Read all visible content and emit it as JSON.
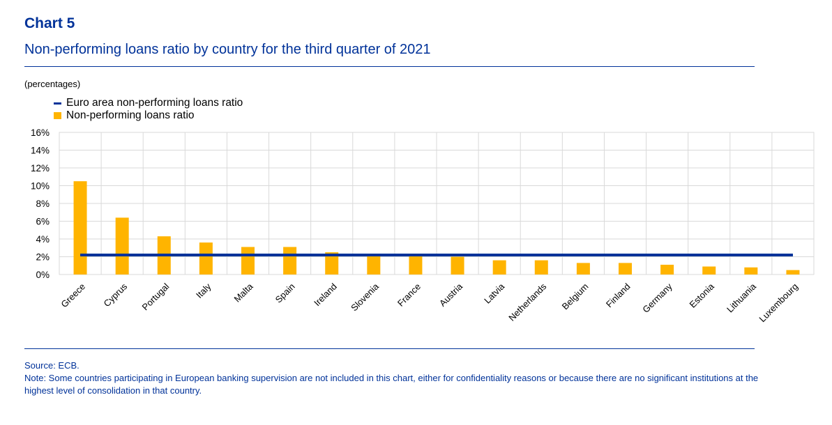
{
  "header": {
    "label": "Chart 5",
    "title": "Non-performing loans ratio by country for the third quarter of 2021",
    "units": "(percentages)"
  },
  "legend": {
    "items": [
      {
        "label": "Euro area non-performing loans ratio",
        "color": "#003299",
        "kind": "line"
      },
      {
        "label": "Non-performing loans ratio",
        "color": "#ffb400",
        "kind": "bar"
      }
    ]
  },
  "footer": {
    "source": "Source: ECB.",
    "note": "Note: Some countries participating in European banking supervision are not included in this chart, either for confidentiality reasons or because there are no significant institutions at the highest level of consolidation in that country."
  },
  "chart_data": {
    "type": "bar",
    "categories": [
      "Greece",
      "Cyprus",
      "Portugal",
      "Italy",
      "Malta",
      "Spain",
      "Ireland",
      "Slovenia",
      "France",
      "Austria",
      "Latvia",
      "Netherlands",
      "Belgium",
      "Finland",
      "Germany",
      "Estonia",
      "Lithuania",
      "Luxembourg"
    ],
    "series": [
      {
        "name": "Non-performing loans ratio",
        "type": "bar",
        "color": "#ffb400",
        "values": [
          10.5,
          6.4,
          4.3,
          3.6,
          3.1,
          3.1,
          2.5,
          2.3,
          2.3,
          2.0,
          1.6,
          1.6,
          1.3,
          1.3,
          1.1,
          0.9,
          0.8,
          0.5
        ]
      },
      {
        "name": "Euro area non-performing loans ratio",
        "type": "line",
        "color": "#003299",
        "value": 2.2
      }
    ],
    "yticks": [
      "0%",
      "2%",
      "4%",
      "6%",
      "8%",
      "10%",
      "12%",
      "14%",
      "16%"
    ],
    "ylim": [
      0,
      16
    ],
    "grid": true,
    "legend_position": "top-left"
  }
}
